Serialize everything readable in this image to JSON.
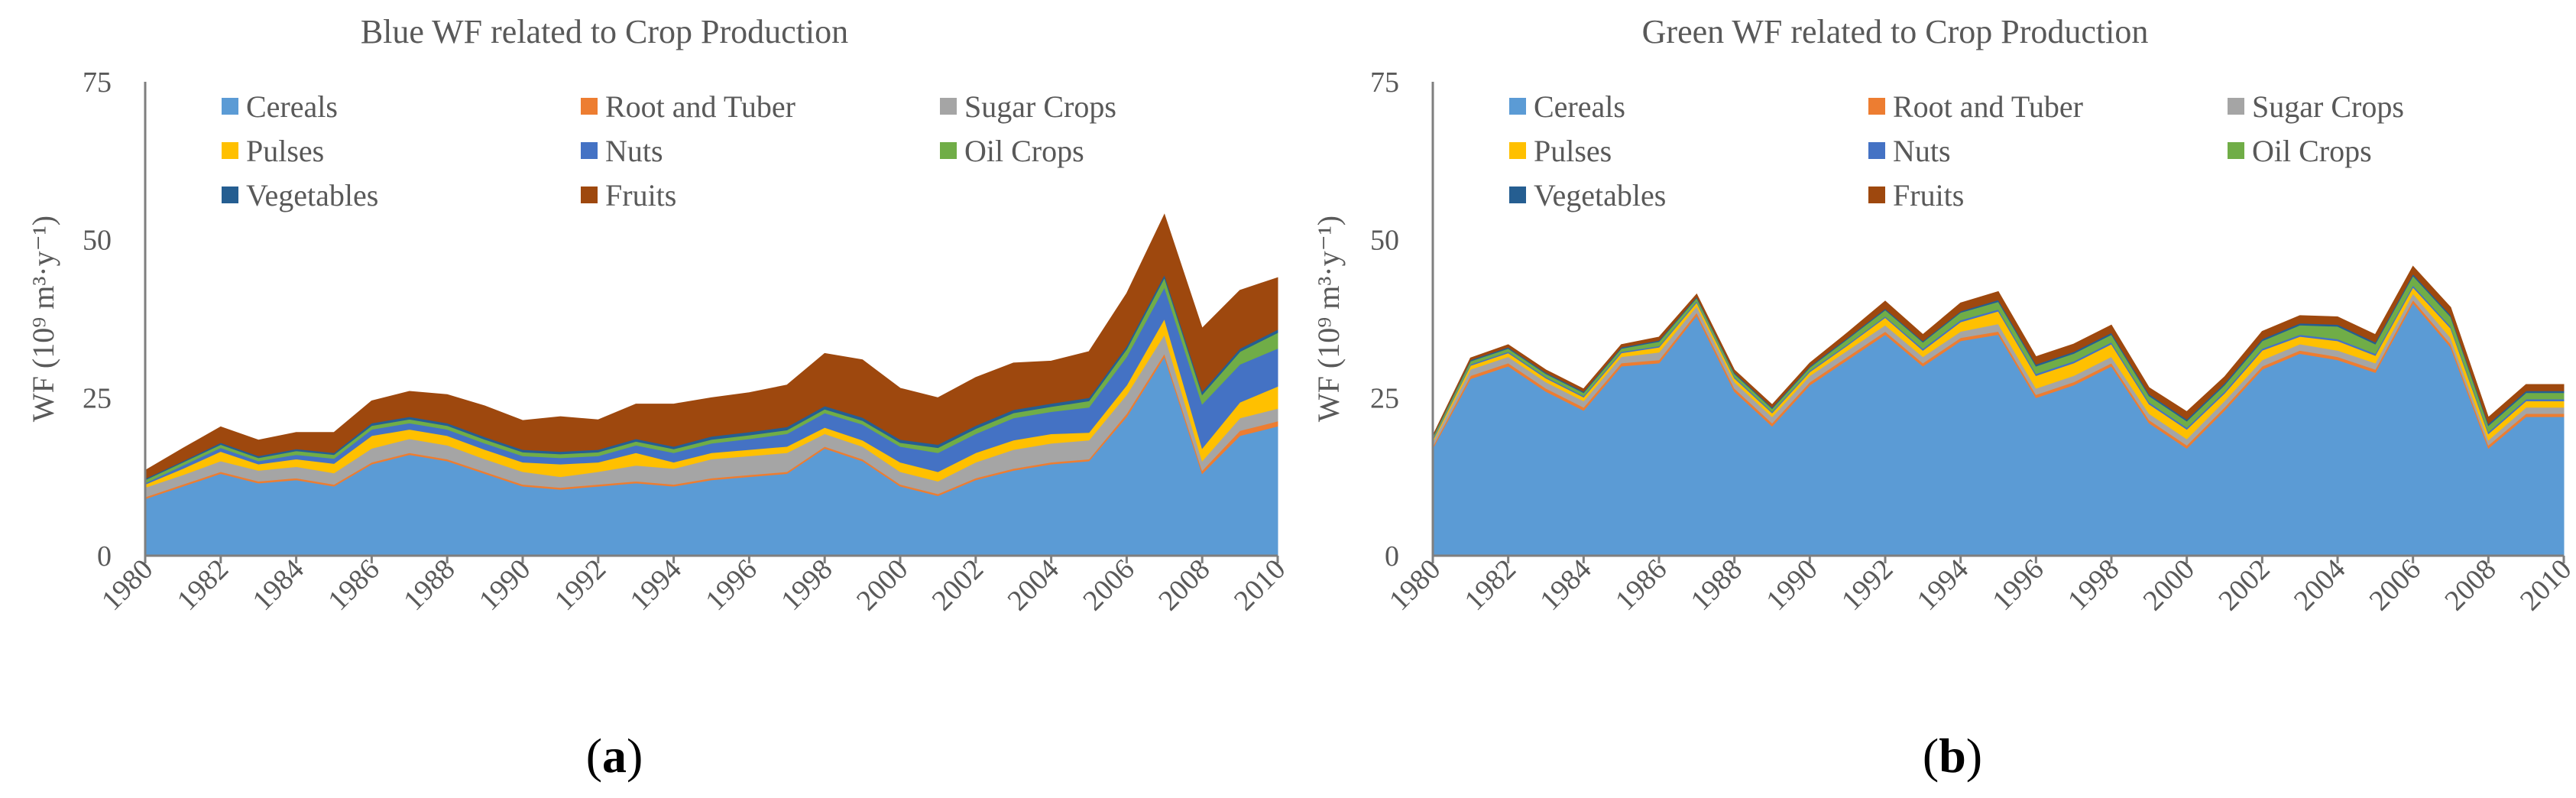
{
  "chart_data": [
    {
      "type": "area",
      "stacked": true,
      "title": "Blue WF related to Crop Production",
      "panel_label": "(a)",
      "ylabel": "WF (10⁹ m³·y⁻¹)",
      "xlabel": "",
      "ylim": [
        0,
        75
      ],
      "yticks": [
        0,
        25,
        50,
        75
      ],
      "x": [
        1980,
        1981,
        1982,
        1983,
        1984,
        1985,
        1986,
        1987,
        1988,
        1989,
        1990,
        1991,
        1992,
        1993,
        1994,
        1995,
        1996,
        1997,
        1998,
        1999,
        2000,
        2001,
        2002,
        2003,
        2004,
        2005,
        2006,
        2007,
        2008,
        2009,
        2010
      ],
      "xtick_labels": [
        "1980",
        "1982",
        "1984",
        "1986",
        "1988",
        "1990",
        "1992",
        "1994",
        "1996",
        "1998",
        "2000",
        "2002",
        "2004",
        "2006",
        "2008",
        "2010"
      ],
      "series": [
        {
          "name": "Cereals",
          "color": "#5B9BD5",
          "values": [
            9.0,
            11.0,
            13.0,
            11.5,
            12.0,
            11.0,
            14.5,
            16.0,
            15.0,
            13.0,
            11.0,
            10.5,
            11.0,
            11.5,
            11.0,
            12.0,
            12.5,
            13.0,
            17.0,
            15.0,
            11.0,
            9.5,
            12.0,
            13.5,
            14.5,
            15.0,
            22.0,
            31.5,
            13.0,
            19.0,
            20.5
          ]
        },
        {
          "name": "Root and Tuber",
          "color": "#ED7D31",
          "values": [
            0.3,
            0.3,
            0.3,
            0.3,
            0.3,
            0.3,
            0.3,
            0.3,
            0.3,
            0.3,
            0.3,
            0.3,
            0.3,
            0.3,
            0.3,
            0.3,
            0.3,
            0.3,
            0.3,
            0.3,
            0.3,
            0.3,
            0.3,
            0.3,
            0.3,
            0.3,
            0.5,
            0.5,
            0.5,
            0.8,
            0.8
          ]
        },
        {
          "name": "Sugar Crops",
          "color": "#A5A5A5",
          "values": [
            1.5,
            1.5,
            1.7,
            1.7,
            1.8,
            1.8,
            2.2,
            2.2,
            2.2,
            2.0,
            2.0,
            1.7,
            2.0,
            2.5,
            2.5,
            3.0,
            3.0,
            3.0,
            2.0,
            2.0,
            2.0,
            2.0,
            2.5,
            3.0,
            3.0,
            3.0,
            3.0,
            3.0,
            1.5,
            2.0,
            2.0
          ]
        },
        {
          "name": "Pulses",
          "color": "#FFC000",
          "values": [
            0.5,
            1.0,
            1.5,
            1.0,
            1.2,
            1.5,
            2.0,
            1.5,
            1.5,
            1.5,
            1.5,
            2.0,
            1.5,
            2.0,
            1.0,
            1.0,
            1.0,
            1.0,
            1.0,
            1.0,
            1.5,
            1.5,
            1.5,
            1.5,
            1.5,
            1.2,
            1.5,
            2.5,
            2.0,
            2.5,
            3.5
          ]
        },
        {
          "name": "Nuts",
          "color": "#4472C4",
          "values": [
            0.2,
            0.5,
            0.6,
            0.5,
            0.7,
            0.8,
            1.0,
            1.0,
            1.0,
            1.0,
            1.0,
            1.0,
            1.0,
            1.2,
            1.5,
            1.5,
            1.7,
            2.0,
            2.3,
            2.5,
            2.5,
            3.0,
            3.0,
            3.5,
            3.5,
            4.0,
            4.5,
            5.0,
            7.0,
            6.0,
            6.0
          ]
        },
        {
          "name": "Oil Crops",
          "color": "#70AD47",
          "values": [
            0.5,
            0.5,
            0.5,
            0.5,
            0.6,
            0.6,
            0.6,
            0.6,
            0.6,
            0.6,
            0.6,
            0.6,
            0.6,
            0.6,
            0.6,
            0.6,
            0.6,
            0.6,
            0.6,
            0.6,
            0.6,
            0.8,
            0.8,
            0.8,
            0.8,
            1.0,
            1.2,
            1.5,
            1.5,
            2.0,
            2.5
          ]
        },
        {
          "name": "Vegetables",
          "color": "#255E91",
          "values": [
            0.2,
            0.2,
            0.3,
            0.3,
            0.3,
            0.3,
            0.4,
            0.4,
            0.4,
            0.4,
            0.4,
            0.4,
            0.4,
            0.4,
            0.4,
            0.5,
            0.5,
            0.5,
            0.5,
            0.5,
            0.5,
            0.5,
            0.5,
            0.5,
            0.5,
            0.5,
            0.5,
            0.5,
            0.5,
            0.5,
            0.5
          ]
        },
        {
          "name": "Fruits",
          "color": "#9E480E",
          "values": [
            1.3,
            2.0,
            2.5,
            2.5,
            2.6,
            3.2,
            3.5,
            4.0,
            4.5,
            4.9,
            4.6,
            5.5,
            4.7,
            5.5,
            6.7,
            6.1,
            6.2,
            6.6,
            8.3,
            9.1,
            8.1,
            7.4,
            7.6,
            7.4,
            6.7,
            7.3,
            8.3,
            9.5,
            10.0,
            9.2,
            8.2
          ]
        }
      ]
    },
    {
      "type": "area",
      "stacked": true,
      "title": "Green WF related to Crop Production",
      "panel_label": "(b)",
      "ylabel": "WF (10⁹ m³·y⁻¹)",
      "xlabel": "",
      "ylim": [
        0,
        75
      ],
      "yticks": [
        0,
        25,
        50,
        75
      ],
      "x": [
        1980,
        1981,
        1982,
        1983,
        1984,
        1985,
        1986,
        1987,
        1988,
        1989,
        1990,
        1991,
        1992,
        1993,
        1994,
        1995,
        1996,
        1997,
        1998,
        1999,
        2000,
        2001,
        2002,
        2003,
        2004,
        2005,
        2006,
        2007,
        2008,
        2009,
        2010
      ],
      "xtick_labels": [
        "1980",
        "1982",
        "1984",
        "1986",
        "1988",
        "1990",
        "1992",
        "1994",
        "1996",
        "1998",
        "2000",
        "2002",
        "2004",
        "2006",
        "2008",
        "2010"
      ],
      "series": [
        {
          "name": "Cereals",
          "color": "#5B9BD5",
          "values": [
            17.0,
            28.0,
            30.0,
            26.0,
            23.0,
            30.0,
            30.5,
            38.0,
            26.0,
            20.5,
            27.0,
            31.0,
            35.0,
            30.0,
            34.0,
            35.0,
            25.0,
            27.0,
            30.0,
            21.0,
            17.0,
            23.0,
            29.5,
            32.0,
            31.0,
            29.0,
            40.0,
            33.0,
            17.0,
            22.0,
            22.0
          ]
        },
        {
          "name": "Root and Tuber",
          "color": "#ED7D31",
          "values": [
            0.3,
            0.5,
            0.5,
            0.5,
            0.5,
            0.5,
            0.5,
            0.5,
            0.5,
            0.5,
            0.5,
            0.5,
            0.5,
            0.5,
            0.5,
            0.5,
            0.5,
            0.5,
            0.5,
            0.5,
            0.5,
            0.5,
            0.5,
            0.5,
            0.5,
            0.5,
            0.5,
            0.5,
            0.5,
            0.5,
            0.5
          ]
        },
        {
          "name": "Sugar Crops",
          "color": "#A5A5A5",
          "values": [
            0.7,
            1.0,
            1.0,
            1.0,
            1.0,
            1.0,
            1.2,
            1.0,
            1.0,
            1.0,
            1.0,
            1.0,
            1.0,
            1.0,
            1.0,
            1.2,
            1.0,
            1.0,
            1.0,
            1.0,
            1.0,
            1.0,
            1.0,
            1.0,
            1.0,
            1.0,
            1.0,
            1.0,
            0.8,
            1.0,
            1.0
          ]
        },
        {
          "name": "Pulses",
          "color": "#FFC000",
          "values": [
            0.3,
            0.6,
            0.6,
            0.6,
            0.6,
            0.6,
            0.8,
            0.6,
            0.6,
            0.6,
            0.6,
            0.8,
            1.2,
            1.0,
            1.5,
            2.0,
            2.0,
            2.0,
            2.0,
            1.5,
            1.5,
            1.2,
            1.5,
            1.2,
            1.5,
            1.2,
            1.0,
            1.5,
            1.0,
            1.0,
            1.0
          ]
        },
        {
          "name": "Nuts",
          "color": "#4472C4",
          "values": [
            0.2,
            0.2,
            0.2,
            0.2,
            0.2,
            0.2,
            0.2,
            0.2,
            0.2,
            0.2,
            0.2,
            0.2,
            0.2,
            0.3,
            0.3,
            0.3,
            0.3,
            0.3,
            0.3,
            0.3,
            0.3,
            0.3,
            0.3,
            0.3,
            0.3,
            0.3,
            0.3,
            0.3,
            0.3,
            0.3,
            0.3
          ]
        },
        {
          "name": "Oil Crops",
          "color": "#70AD47",
          "values": [
            0.3,
            0.5,
            0.5,
            0.5,
            0.5,
            0.5,
            0.7,
            0.5,
            0.5,
            0.5,
            0.5,
            0.8,
            1.0,
            1.0,
            1.2,
            1.2,
            1.2,
            1.2,
            1.2,
            1.0,
            1.0,
            1.0,
            1.2,
            1.5,
            2.0,
            1.5,
            1.5,
            1.5,
            1.0,
            1.0,
            1.0
          ]
        },
        {
          "name": "Vegetables",
          "color": "#255E91",
          "values": [
            0.1,
            0.2,
            0.2,
            0.2,
            0.2,
            0.2,
            0.2,
            0.2,
            0.2,
            0.2,
            0.2,
            0.2,
            0.2,
            0.2,
            0.2,
            0.3,
            0.3,
            0.3,
            0.3,
            0.3,
            0.3,
            0.3,
            0.3,
            0.3,
            0.3,
            0.3,
            0.3,
            0.3,
            0.3,
            0.3,
            0.3
          ]
        },
        {
          "name": "Fruits",
          "color": "#9E480E",
          "values": [
            0.1,
            0.3,
            0.4,
            0.4,
            0.4,
            0.4,
            0.5,
            0.4,
            0.4,
            0.4,
            0.5,
            0.8,
            1.2,
            1.0,
            1.3,
            1.3,
            1.2,
            1.2,
            1.2,
            1.0,
            1.2,
            1.0,
            1.2,
            1.2,
            1.2,
            1.2,
            1.2,
            1.2,
            1.0,
            1.0,
            1.0
          ]
        }
      ]
    }
  ]
}
